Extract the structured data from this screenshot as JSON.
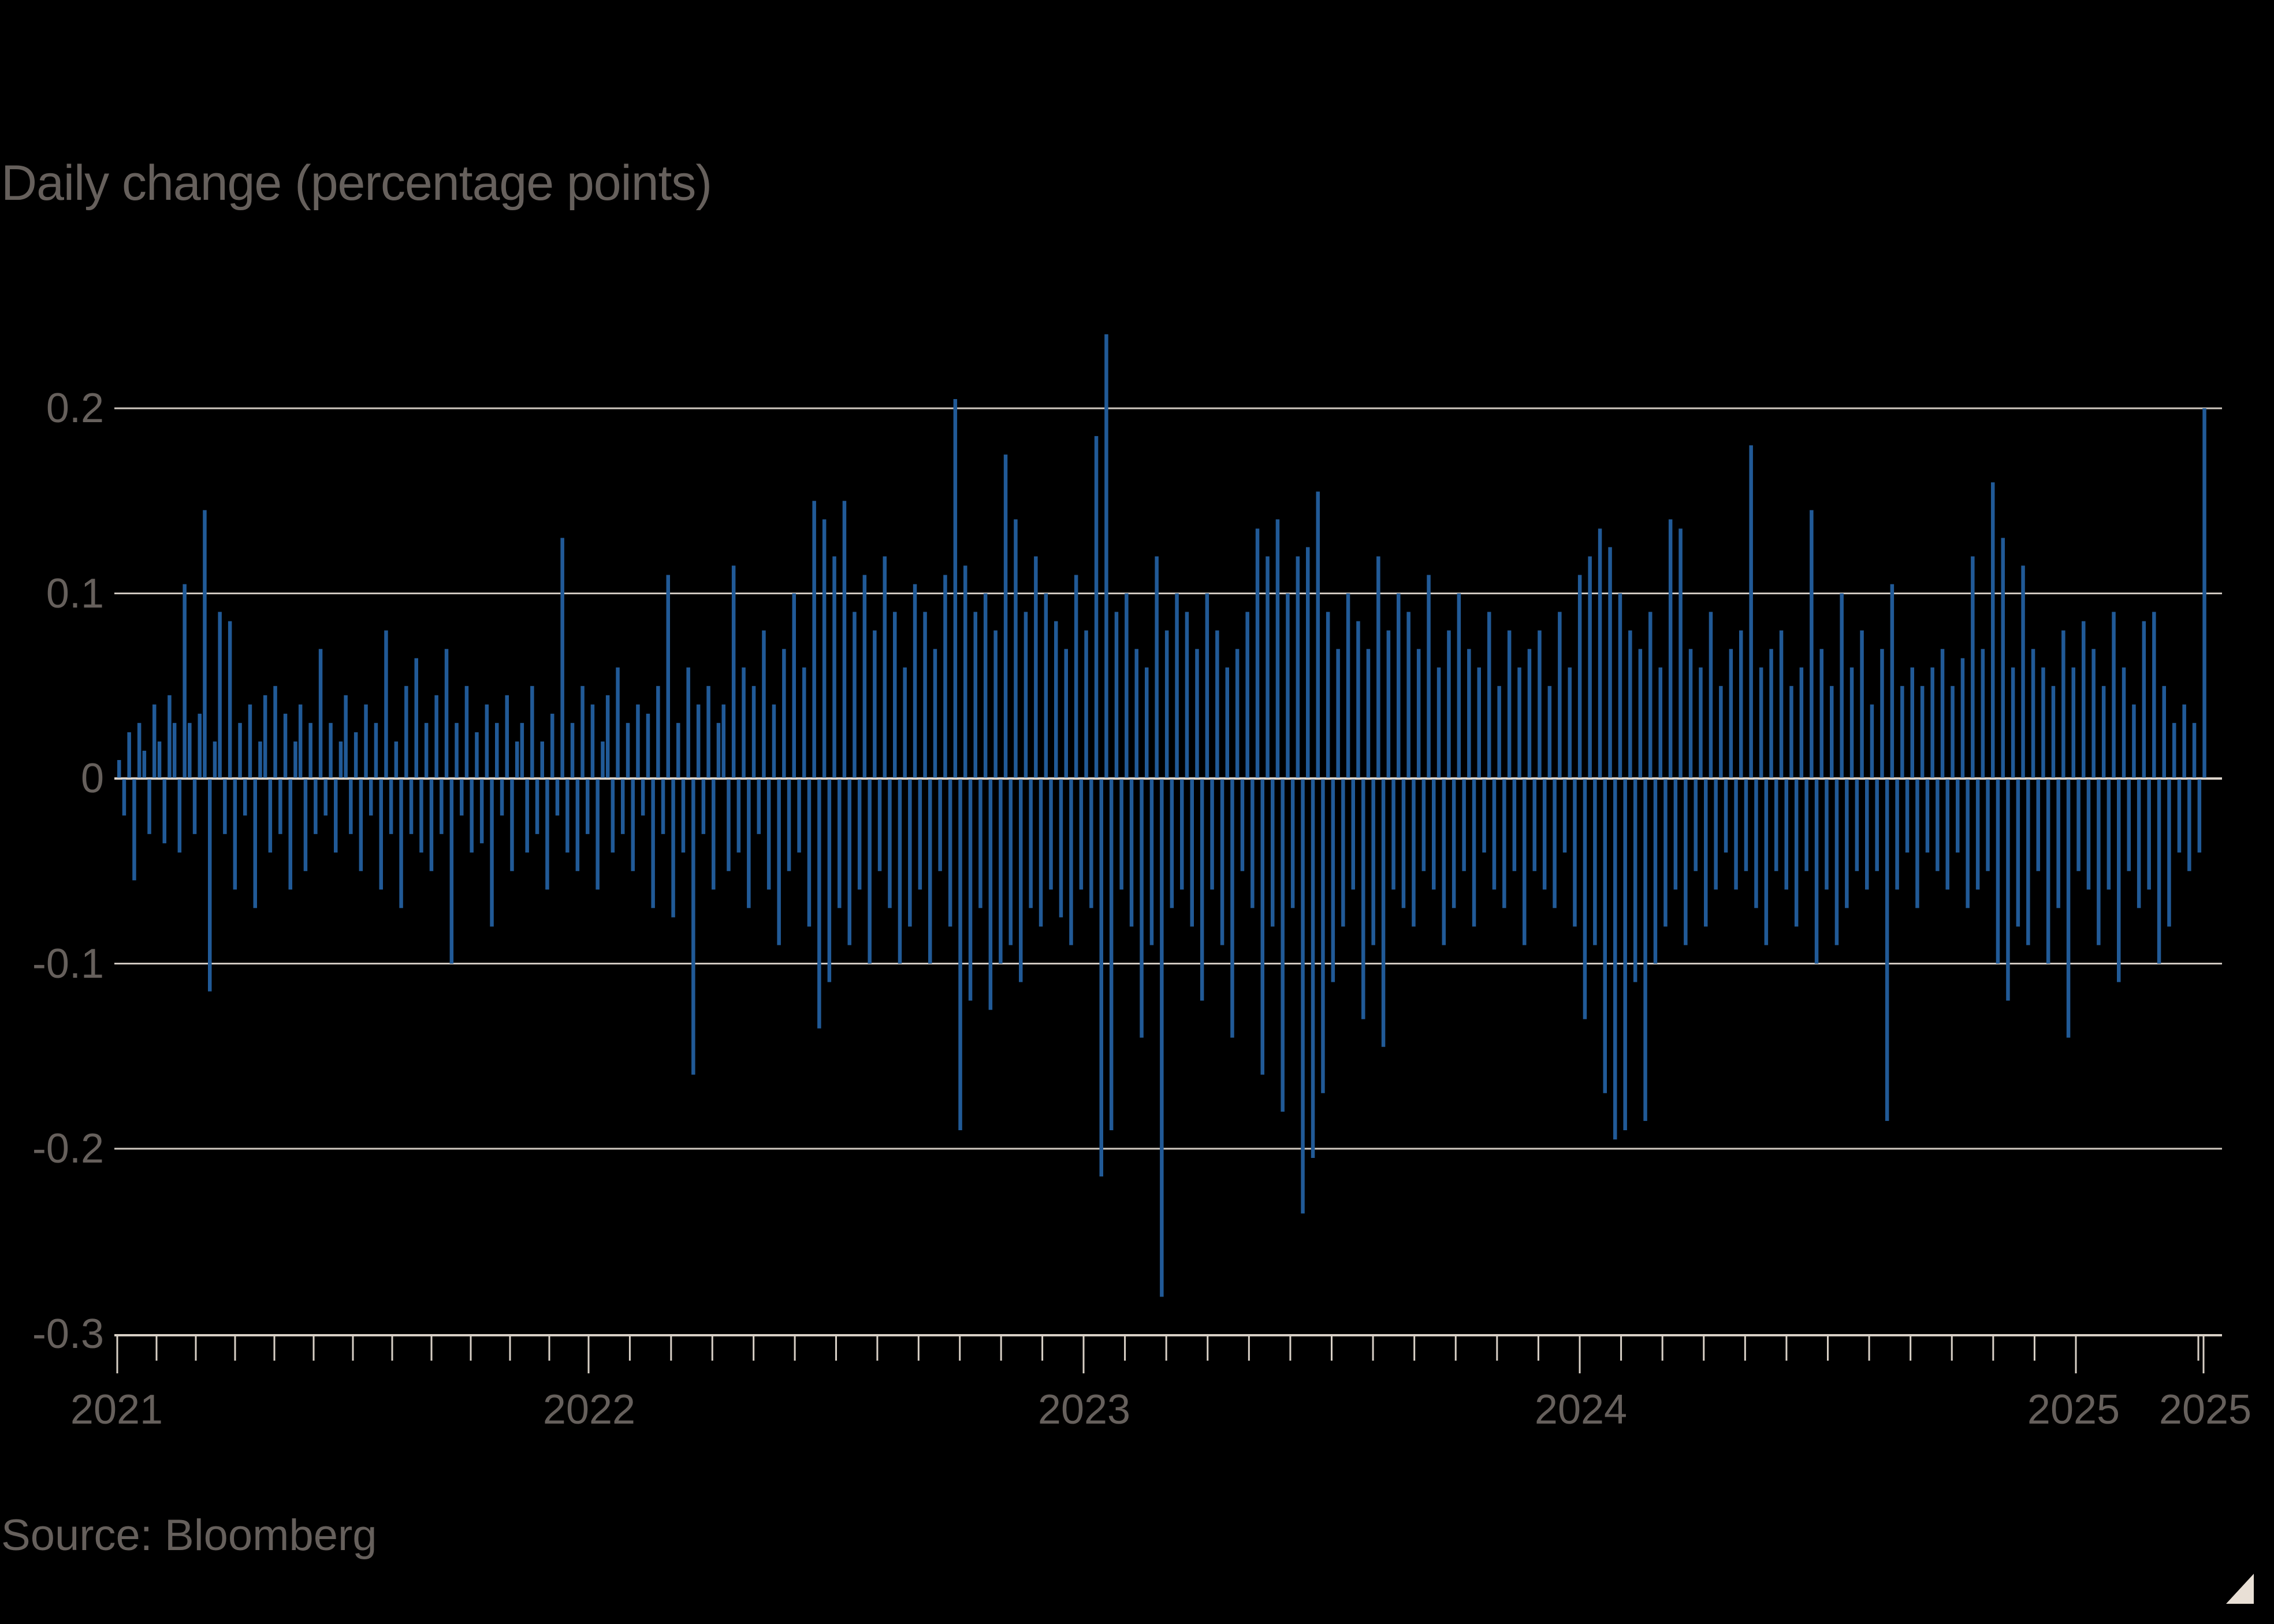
{
  "chart_data": {
    "type": "bar",
    "title": "",
    "subtitle": "Daily change (percentage points)",
    "xlabel": "",
    "ylabel": "Daily change (percentage points)",
    "ylim": [
      -0.3,
      0.24
    ],
    "yticks": [
      0.2,
      0.1,
      0,
      -0.1,
      -0.2,
      -0.3
    ],
    "ytick_labels": [
      "0.2",
      "0.1",
      "0",
      "-0.1",
      "-0.2",
      "-0.3"
    ],
    "xtick_labels": [
      "2021",
      "2022",
      "2023",
      "2024",
      "2025",
      "2025"
    ],
    "x_range": [
      "2021-01-04",
      "2025-01-10"
    ],
    "grid": true,
    "legend": null,
    "series_color": "#215a97",
    "notable_points": [
      {
        "date": "2021-02",
        "value": 0.145
      },
      {
        "date": "2021-02",
        "value": -0.115
      },
      {
        "date": "2021-12",
        "value": -0.16
      },
      {
        "date": "2022-06",
        "value": 0.205
      },
      {
        "date": "2022-06",
        "value": -0.19
      },
      {
        "date": "2022-09",
        "value": 0.24
      },
      {
        "date": "2022-09",
        "value": 0.185
      },
      {
        "date": "2022-09",
        "value": -0.215
      },
      {
        "date": "2022-11",
        "value": -0.28
      },
      {
        "date": "2023-03",
        "value": -0.235
      },
      {
        "date": "2023-03",
        "value": -0.205
      },
      {
        "date": "2023-03",
        "value": 0.155
      },
      {
        "date": "2023-11",
        "value": -0.195
      },
      {
        "date": "2024-04",
        "value": 0.18
      },
      {
        "date": "2024-08",
        "value": -0.185
      },
      {
        "date": "2025-01",
        "value": 0.2
      }
    ],
    "values": [
      0.01,
      -0.02,
      0.025,
      -0.055,
      0.03,
      0.015,
      -0.03,
      0.04,
      0.02,
      -0.035,
      0.045,
      0.03,
      -0.04,
      0.105,
      0.03,
      -0.03,
      0.035,
      0.145,
      -0.115,
      0.02,
      0.09,
      -0.03,
      0.085,
      -0.06,
      0.03,
      -0.02,
      0.04,
      -0.07,
      0.02,
      0.045,
      -0.04,
      0.05,
      -0.03,
      0.035,
      -0.06,
      0.02,
      0.04,
      -0.05,
      0.03,
      -0.03,
      0.07,
      -0.02,
      0.03,
      -0.04,
      0.02,
      0.045,
      -0.03,
      0.025,
      -0.05,
      0.04,
      -0.02,
      0.03,
      -0.06,
      0.08,
      -0.03,
      0.02,
      -0.07,
      0.05,
      -0.03,
      0.065,
      -0.04,
      0.03,
      -0.05,
      0.045,
      -0.03,
      0.07,
      -0.1,
      0.03,
      -0.02,
      0.05,
      -0.04,
      0.025,
      -0.035,
      0.04,
      -0.08,
      0.03,
      -0.02,
      0.045,
      -0.05,
      0.02,
      0.03,
      -0.04,
      0.05,
      -0.03,
      0.02,
      -0.06,
      0.035,
      -0.02,
      0.13,
      -0.04,
      0.03,
      -0.05,
      0.05,
      -0.03,
      0.04,
      -0.06,
      0.02,
      0.045,
      -0.04,
      0.06,
      -0.03,
      0.03,
      -0.05,
      0.04,
      -0.02,
      0.035,
      -0.07,
      0.05,
      -0.03,
      0.11,
      -0.075,
      0.03,
      -0.04,
      0.06,
      -0.16,
      0.04,
      -0.03,
      0.05,
      -0.06,
      0.03,
      0.04,
      -0.05,
      0.115,
      -0.04,
      0.06,
      -0.07,
      0.05,
      -0.03,
      0.08,
      -0.06,
      0.04,
      -0.09,
      0.07,
      -0.05,
      0.1,
      -0.04,
      0.06,
      -0.08,
      0.15,
      -0.135,
      0.14,
      -0.11,
      0.12,
      -0.07,
      0.15,
      -0.09,
      0.09,
      -0.06,
      0.11,
      -0.1,
      0.08,
      -0.05,
      0.12,
      -0.07,
      0.09,
      -0.1,
      0.06,
      -0.08,
      0.105,
      -0.06,
      0.09,
      -0.1,
      0.07,
      -0.05,
      0.11,
      -0.08,
      0.205,
      -0.19,
      0.115,
      -0.12,
      0.09,
      -0.07,
      0.1,
      -0.125,
      0.08,
      -0.1,
      0.175,
      -0.09,
      0.14,
      -0.11,
      0.09,
      -0.07,
      0.12,
      -0.08,
      0.1,
      -0.06,
      0.085,
      -0.075,
      0.07,
      -0.09,
      0.11,
      -0.06,
      0.08,
      -0.07,
      0.185,
      -0.215,
      0.24,
      -0.19,
      0.09,
      -0.06,
      0.1,
      -0.08,
      0.07,
      -0.14,
      0.06,
      -0.09,
      0.12,
      -0.28,
      0.08,
      -0.07,
      0.1,
      -0.06,
      0.09,
      -0.08,
      0.07,
      -0.12,
      0.1,
      -0.06,
      0.08,
      -0.09,
      0.06,
      -0.14,
      0.07,
      -0.05,
      0.09,
      -0.07,
      0.135,
      -0.16,
      0.12,
      -0.08,
      0.14,
      -0.18,
      0.1,
      -0.07,
      0.12,
      -0.235,
      0.125,
      -0.205,
      0.155,
      -0.17,
      0.09,
      -0.11,
      0.07,
      -0.08,
      0.1,
      -0.06,
      0.085,
      -0.13,
      0.07,
      -0.09,
      0.12,
      -0.145,
      0.08,
      -0.06,
      0.1,
      -0.07,
      0.09,
      -0.08,
      0.07,
      -0.05,
      0.11,
      -0.06,
      0.06,
      -0.09,
      0.08,
      -0.07,
      0.1,
      -0.05,
      0.07,
      -0.08,
      0.06,
      -0.04,
      0.09,
      -0.06,
      0.05,
      -0.07,
      0.08,
      -0.05,
      0.06,
      -0.09,
      0.07,
      -0.05,
      0.08,
      -0.06,
      0.05,
      -0.07,
      0.09,
      -0.04,
      0.06,
      -0.08,
      0.11,
      -0.13,
      0.12,
      -0.09,
      0.135,
      -0.17,
      0.125,
      -0.195,
      0.1,
      -0.19,
      0.08,
      -0.11,
      0.07,
      -0.185,
      0.09,
      -0.1,
      0.06,
      -0.08,
      0.14,
      -0.06,
      0.135,
      -0.09,
      0.07,
      -0.05,
      0.06,
      -0.08,
      0.09,
      -0.06,
      0.05,
      -0.04,
      0.07,
      -0.06,
      0.08,
      -0.05,
      0.18,
      -0.07,
      0.06,
      -0.09,
      0.07,
      -0.05,
      0.08,
      -0.06,
      0.05,
      -0.08,
      0.06,
      -0.05,
      0.145,
      -0.1,
      0.07,
      -0.06,
      0.05,
      -0.09,
      0.1,
      -0.07,
      0.06,
      -0.05,
      0.08,
      -0.06,
      0.04,
      -0.05,
      0.07,
      -0.185,
      0.105,
      -0.06,
      0.05,
      -0.04,
      0.06,
      -0.07,
      0.05,
      -0.04,
      0.06,
      -0.05,
      0.07,
      -0.06,
      0.05,
      -0.04,
      0.065,
      -0.07,
      0.12,
      -0.06,
      0.07,
      -0.05,
      0.16,
      -0.1,
      0.13,
      -0.12,
      0.06,
      -0.08,
      0.115,
      -0.09,
      0.07,
      -0.05,
      0.06,
      -0.1,
      0.05,
      -0.07,
      0.08,
      -0.14,
      0.06,
      -0.05,
      0.085,
      -0.06,
      0.07,
      -0.09,
      0.05,
      -0.06,
      0.09,
      -0.11,
      0.06,
      -0.05,
      0.04,
      -0.07,
      0.085,
      -0.06,
      0.09,
      -0.1,
      0.05,
      -0.08,
      0.03,
      -0.04,
      0.04,
      -0.05,
      0.03,
      -0.04,
      0.2
    ]
  },
  "footer": {
    "source": "Source: Bloomberg"
  }
}
